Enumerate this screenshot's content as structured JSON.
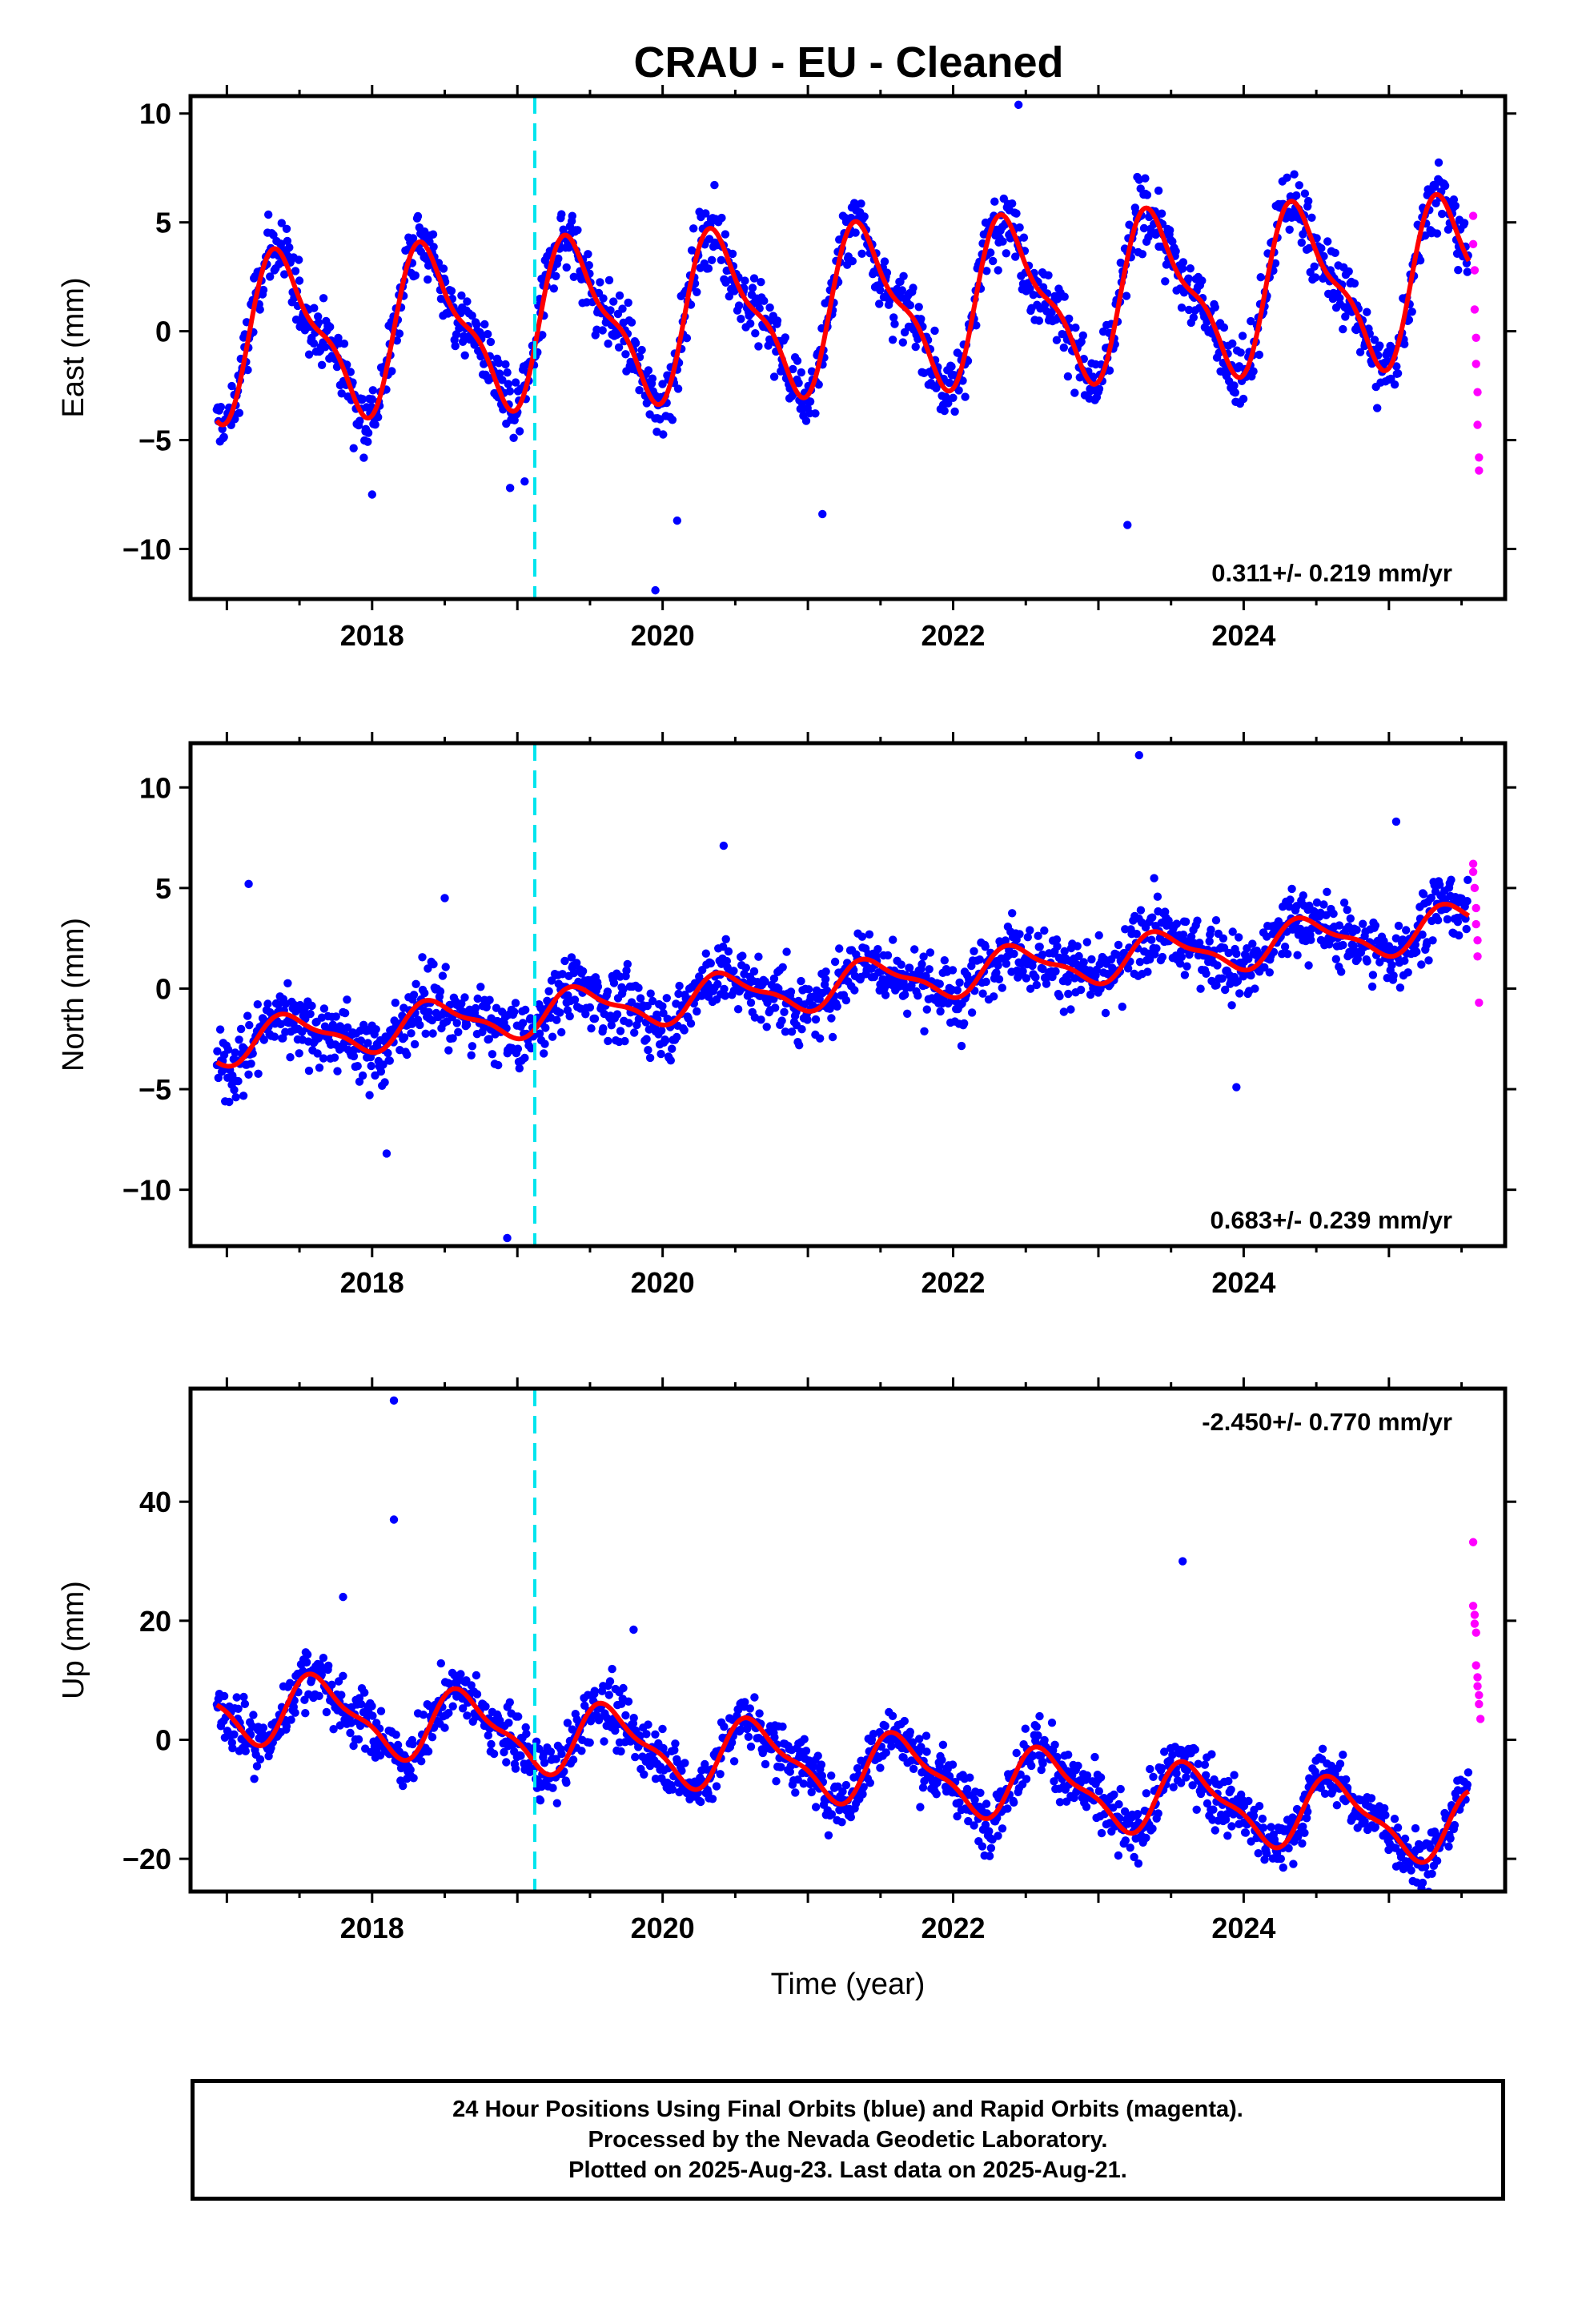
{
  "title": "CRAU  - EU - Cleaned",
  "footer": {
    "line1": "24 Hour Positions Using Final Orbits (blue) and Rapid Orbits (magenta).",
    "line2": "Processed by the Nevada Geodetic Laboratory.",
    "line3": "Plotted on 2025-Aug-23. Last data on 2025-Aug-21."
  },
  "colors": {
    "final_orbits": "#0000ff",
    "rapid_orbits": "#ff00ff",
    "model_fit": "#ff0000",
    "equipment_change": "#00e5ee"
  },
  "chart_data": [
    {
      "type": "scatter",
      "panel": "east",
      "ylabel": "East (mm)",
      "xlabel": "",
      "xlim": [
        2016.75,
        2025.8
      ],
      "ylim": [
        -12.3,
        10.8
      ],
      "xticks": [
        2018,
        2020,
        2022,
        2024
      ],
      "yticks": [
        10,
        5,
        0,
        -5,
        -10
      ],
      "grid": false,
      "rate_label": "0.311+/- 0.219 mm/yr",
      "rate_position": "bottom-right",
      "model": {
        "trend": 0.311,
        "annual_amp": 3.4,
        "phase": 2017.15,
        "offset": -0.3
      },
      "equipment_change_x": 2019.12,
      "series": [
        {
          "name": "Final Orbits (blue)",
          "x_range": [
            2016.93,
            2025.55
          ],
          "spread": 1.3
        },
        {
          "name": "Rapid Orbits (magenta)",
          "x": [
            2025.58,
            2025.58,
            2025.59,
            2025.59,
            2025.6,
            2025.6,
            2025.61,
            2025.61,
            2025.62,
            2025.62
          ],
          "y": [
            5.3,
            4.0,
            2.8,
            1.0,
            -0.3,
            -1.5,
            -2.8,
            -4.3,
            -5.8,
            -6.4
          ]
        }
      ],
      "outliers": {
        "x": [
          2018.95,
          2019.95,
          2020.1,
          2021.1,
          2022.45,
          2023.2,
          2019.05,
          2018.0
        ],
        "y": [
          -7.2,
          -11.9,
          -8.7,
          -8.4,
          10.4,
          -8.9,
          -6.9,
          -7.5
        ]
      }
    },
    {
      "type": "scatter",
      "panel": "north",
      "ylabel": "North (mm)",
      "xlabel": "",
      "xlim": [
        2016.75,
        2025.8
      ],
      "ylim": [
        -12.8,
        12.2
      ],
      "xticks": [
        2018,
        2020,
        2022,
        2024
      ],
      "yticks": [
        10,
        5,
        0,
        -5,
        -10
      ],
      "grid": false,
      "rate_label": "0.683+/- 0.239 mm/yr",
      "rate_position": "bottom-right",
      "model": {
        "trend": 0.683,
        "annual_amp": 1.0,
        "phase": 2017.2,
        "offset": -2.7
      },
      "equipment_change_x": 2019.12,
      "series": [
        {
          "name": "Final Orbits (blue)",
          "x_range": [
            2016.93,
            2025.55
          ],
          "spread": 1.4
        },
        {
          "name": "Rapid Orbits (magenta)",
          "x": [
            2025.58,
            2025.58,
            2025.59,
            2025.6,
            2025.6,
            2025.61,
            2025.61,
            2025.62
          ],
          "y": [
            6.2,
            5.8,
            5.0,
            4.0,
            3.2,
            2.4,
            1.6,
            -0.7
          ]
        }
      ],
      "outliers": {
        "x": [
          2018.93,
          2020.42,
          2023.28,
          2023.95,
          2025.05,
          2017.15,
          2018.1,
          2018.5
        ],
        "y": [
          -12.4,
          7.1,
          11.6,
          -4.9,
          8.3,
          5.2,
          -8.2,
          4.5
        ]
      }
    },
    {
      "type": "scatter",
      "panel": "up",
      "ylabel": "Up (mm)",
      "xlabel": "Time (year)",
      "xlim": [
        2016.75,
        2025.8
      ],
      "ylim": [
        -25.5,
        59
      ],
      "xticks": [
        2018,
        2020,
        2022,
        2024
      ],
      "yticks": [
        40,
        20,
        0,
        -20
      ],
      "grid": false,
      "rate_label": "-2.450+/- 0.770 mm/yr",
      "rate_position": "top-right",
      "model": {
        "trend": -2.45,
        "annual_amp": 5.5,
        "phase": 2017.4,
        "offset": 6.0
      },
      "equipment_change_x": 2019.12,
      "series": [
        {
          "name": "Final Orbits (blue)",
          "x_range": [
            2016.93,
            2025.55
          ],
          "spread": 4.0
        },
        {
          "name": "Rapid Orbits (magenta)",
          "x": [
            2025.58,
            2025.58,
            2025.59,
            2025.59,
            2025.6,
            2025.6,
            2025.61,
            2025.61,
            2025.62,
            2025.62,
            2025.63
          ],
          "y": [
            33.2,
            22.5,
            21.0,
            19.5,
            18.0,
            12.5,
            10.5,
            9.0,
            7.5,
            6.0,
            3.5
          ]
        }
      ],
      "outliers": {
        "x": [
          2018.15,
          2018.15,
          2023.58,
          2017.8,
          2019.8
        ],
        "y": [
          57.0,
          37.0,
          30.0,
          24.0,
          18.5
        ]
      }
    }
  ]
}
